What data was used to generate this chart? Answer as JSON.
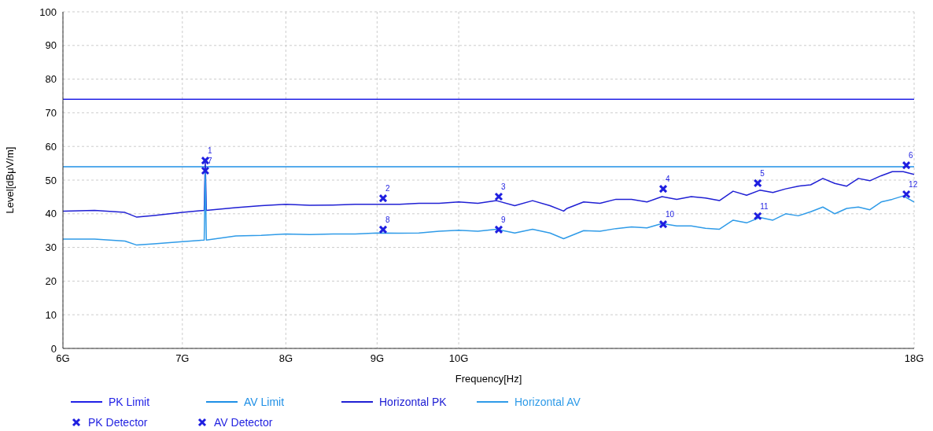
{
  "chart_data": {
    "type": "line",
    "xlabel": "Frequency[Hz]",
    "ylabel": "Level[dBμV/m]",
    "log": "x",
    "grid": true,
    "legend": "bottom",
    "xlim": [
      6,
      18
    ],
    "xticks": [
      {
        "value": 6,
        "label": "6G"
      },
      {
        "value": 7,
        "label": "7G"
      },
      {
        "value": 8,
        "label": "8G"
      },
      {
        "value": 9,
        "label": "9G"
      },
      {
        "value": 10,
        "label": "10G"
      },
      {
        "value": 18,
        "label": "18G"
      }
    ],
    "ylim": [
      0,
      100
    ],
    "yticks": [
      0,
      10,
      20,
      30,
      40,
      50,
      60,
      70,
      80,
      90,
      100
    ],
    "series": [
      {
        "name": "PK Limit",
        "color": "#2121e6",
        "x": [
          6,
          18
        ],
        "values": [
          74,
          74
        ]
      },
      {
        "name": "AV Limit",
        "color": "#1e8fe6",
        "x": [
          6,
          18
        ],
        "values": [
          54,
          54
        ]
      },
      {
        "name": "Horizontal PK",
        "color": "#2020d4",
        "x": [
          6,
          6.25,
          6.5,
          6.6,
          6.75,
          7,
          7.2,
          7.21,
          7.22,
          7.5,
          7.75,
          8,
          8.25,
          8.5,
          8.75,
          9,
          9.25,
          9.5,
          9.75,
          10,
          10.25,
          10.5,
          10.75,
          11,
          11.25,
          11.45,
          11.5,
          11.75,
          12,
          12.25,
          12.5,
          12.75,
          13,
          13.25,
          13.5,
          13.75,
          14,
          14.25,
          14.5,
          14.75,
          15,
          15.25,
          15.5,
          15.75,
          16,
          16.25,
          16.5,
          16.75,
          17,
          17.25,
          17.5,
          17.75,
          18
        ],
        "values": [
          40.8,
          41.0,
          40.4,
          39.0,
          39.5,
          40.4,
          41.0,
          55.8,
          41.0,
          41.8,
          42.4,
          42.8,
          42.5,
          42.6,
          42.8,
          42.8,
          42.8,
          43.1,
          43.1,
          43.5,
          43.1,
          43.9,
          42.4,
          43.9,
          42.4,
          40.8,
          41.6,
          43.5,
          43.1,
          44.3,
          44.3,
          43.5,
          45.1,
          44.3,
          45.1,
          44.7,
          43.9,
          46.7,
          45.5,
          47.0,
          46.3,
          47.4,
          48.2,
          48.6,
          50.5,
          49.0,
          48.2,
          50.5,
          49.8,
          51.3,
          52.5,
          52.5,
          51.7
        ]
      },
      {
        "name": "Horizontal AV",
        "color": "#2f9be8",
        "x": [
          6,
          6.25,
          6.5,
          6.6,
          6.75,
          7,
          7.2,
          7.21,
          7.22,
          7.5,
          7.75,
          8,
          8.25,
          8.5,
          8.75,
          9,
          9.25,
          9.5,
          9.75,
          10,
          10.25,
          10.5,
          10.75,
          11,
          11.25,
          11.45,
          11.5,
          11.75,
          12,
          12.25,
          12.5,
          12.75,
          13,
          13.25,
          13.5,
          13.75,
          14,
          14.25,
          14.5,
          14.75,
          15,
          15.25,
          15.5,
          15.75,
          16,
          16.25,
          16.5,
          16.75,
          17,
          17.25,
          17.5,
          17.75,
          18
        ],
        "values": [
          32.5,
          32.5,
          31.9,
          30.7,
          31.1,
          31.7,
          32.2,
          52.8,
          32.2,
          33.4,
          33.6,
          34.0,
          33.8,
          34.0,
          34.0,
          34.3,
          34.2,
          34.3,
          34.8,
          35.1,
          34.8,
          35.4,
          34.3,
          35.4,
          34.3,
          32.6,
          33.0,
          35.0,
          34.8,
          35.6,
          36.1,
          35.8,
          37.1,
          36.4,
          36.4,
          35.7,
          35.4,
          38.1,
          37.3,
          38.9,
          38.1,
          40.0,
          39.4,
          40.6,
          42.0,
          40.0,
          41.6,
          42.0,
          41.2,
          43.5,
          44.3,
          45.3,
          43.5
        ]
      },
      {
        "name": "PK Detector",
        "type": "scatter",
        "marker": "cross",
        "color": "#1e1ee0",
        "x": [
          7.21,
          9.07,
          10.53,
          13.02,
          14.71,
          17.82
        ],
        "values": [
          55.8,
          44.6,
          45.1,
          47.4,
          49.1,
          54.4
        ]
      },
      {
        "name": "AV Detector",
        "type": "scatter",
        "marker": "cross",
        "color": "#1e1ee0",
        "x": [
          7.21,
          9.07,
          10.53,
          13.02,
          14.71,
          17.82
        ],
        "values": [
          52.8,
          35.3,
          35.3,
          36.9,
          39.3,
          45.8
        ]
      }
    ],
    "annotations": [
      {
        "text": "1",
        "x": 7.21,
        "y": 55.8
      },
      {
        "text": "2",
        "x": 9.07,
        "y": 44.6
      },
      {
        "text": "3",
        "x": 10.53,
        "y": 45.1
      },
      {
        "text": "4",
        "x": 13.02,
        "y": 47.4
      },
      {
        "text": "5",
        "x": 14.71,
        "y": 49.1
      },
      {
        "text": "6",
        "x": 17.82,
        "y": 54.4
      },
      {
        "text": "7",
        "x": 7.21,
        "y": 52.8
      },
      {
        "text": "8",
        "x": 9.07,
        "y": 35.3
      },
      {
        "text": "9",
        "x": 10.53,
        "y": 35.3
      },
      {
        "text": "10",
        "x": 13.02,
        "y": 36.9
      },
      {
        "text": "11",
        "x": 14.71,
        "y": 39.3
      },
      {
        "text": "12",
        "x": 17.82,
        "y": 45.8
      }
    ]
  }
}
